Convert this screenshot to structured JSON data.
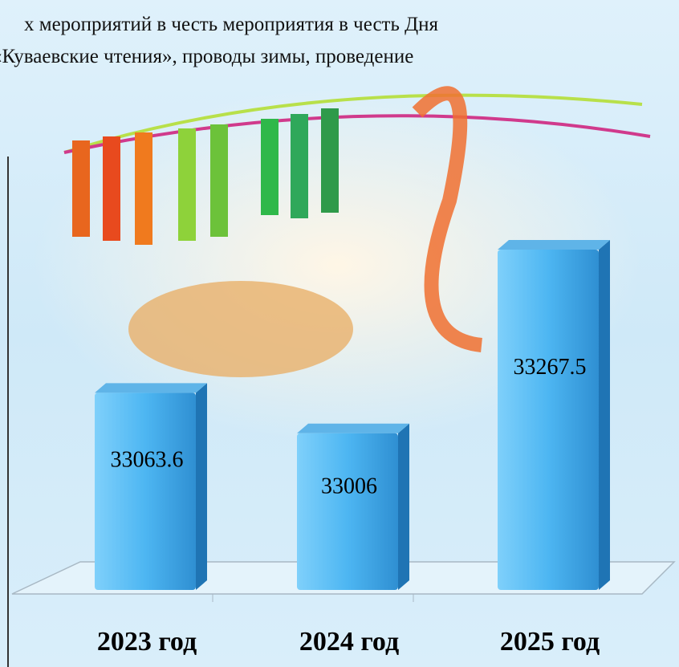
{
  "header": {
    "lines": [
      "х мероприятий в честь мероприятия в честь Дня",
      "«Куваевские чтения», проводы зимы, проведение"
    ]
  },
  "chart_data": {
    "type": "bar3d",
    "categories": [
      "2023 год",
      "2024 год",
      "2025 год"
    ],
    "values": [
      33063.6,
      33006,
      33267.5
    ],
    "color": "#3aa6e8",
    "ylim": [
      32800,
      33400
    ]
  }
}
